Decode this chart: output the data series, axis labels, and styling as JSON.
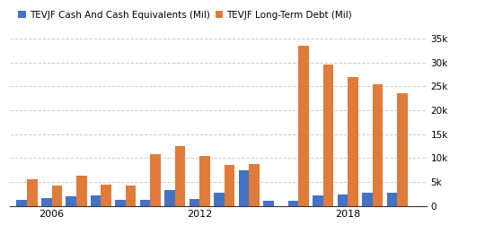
{
  "years": [
    2005,
    2006,
    2007,
    2008,
    2009,
    2010,
    2011,
    2012,
    2013,
    2014,
    2015,
    2016,
    2017,
    2018,
    2019,
    2020
  ],
  "cash": [
    1200,
    1600,
    2000,
    2100,
    1300,
    1200,
    3200,
    1400,
    2700,
    7500,
    1100,
    1000,
    2100,
    2300,
    2700,
    2800
  ],
  "debt": [
    5500,
    4200,
    6200,
    4500,
    4200,
    10800,
    12500,
    10500,
    8600,
    8700,
    0,
    33500,
    29500,
    27000,
    25500,
    23500
  ],
  "cash_color": "#4472c4",
  "debt_color": "#e07b39",
  "legend_labels": [
    "TEVJF Cash And Cash Equivalents (Mil)",
    "TEVJF Long-Term Debt (Mil)"
  ],
  "ylim": [
    0,
    35000
  ],
  "yticks": [
    0,
    5000,
    10000,
    15000,
    20000,
    25000,
    30000,
    35000
  ],
  "ytick_labels": [
    "0",
    "5k",
    "10k",
    "15k",
    "20k",
    "25k",
    "30k",
    "35k"
  ],
  "xticks": [
    2006,
    2012,
    2018
  ],
  "xtick_labels": [
    "2006",
    "2012",
    "2018"
  ],
  "xlim": [
    2004.3,
    2021.2
  ],
  "bg_color": "#ffffff",
  "grid_color": "#cccccc",
  "bar_width": 0.42
}
